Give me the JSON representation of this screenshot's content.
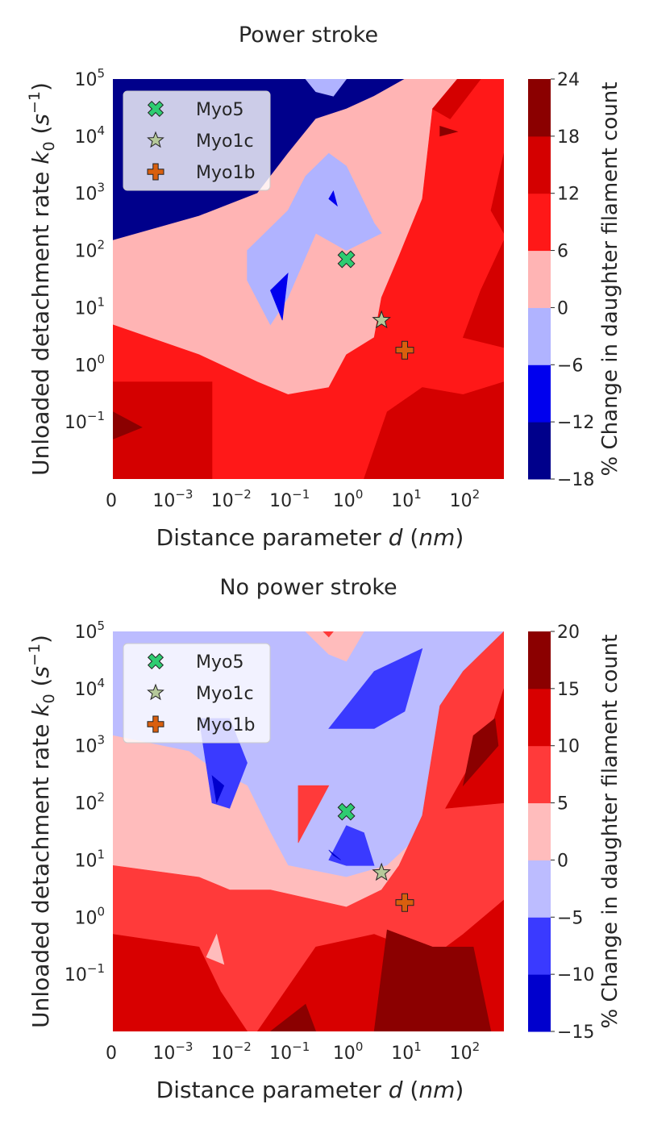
{
  "chart_data": [
    {
      "type": "contour",
      "title": "Power stroke",
      "xlabel_pre": "Distance parameter ",
      "xlabel_var": "d",
      "xlabel_unit": "nm",
      "ylabel_pre": "Unloaded detachment rate ",
      "ylabel_var": "k",
      "ylabel_sub": "0",
      "ylabel_unit": "s",
      "ylabel_exp": "−1",
      "x_scale": "symlog",
      "y_scale": "log",
      "xlim": [
        0,
        500
      ],
      "ylim": [
        0.01,
        100000
      ],
      "xticks": [
        {
          "value": 0,
          "base": "0",
          "exp": ""
        },
        {
          "value": 0.001,
          "base": "10",
          "exp": "−3"
        },
        {
          "value": 0.01,
          "base": "10",
          "exp": "−2"
        },
        {
          "value": 0.1,
          "base": "10",
          "exp": "−1"
        },
        {
          "value": 1,
          "base": "10",
          "exp": "0"
        },
        {
          "value": 10,
          "base": "10",
          "exp": "1"
        },
        {
          "value": 100,
          "base": "10",
          "exp": "2"
        }
      ],
      "yticks": [
        {
          "value": 0.1,
          "base": "10",
          "exp": "−1"
        },
        {
          "value": 1,
          "base": "10",
          "exp": "0"
        },
        {
          "value": 10,
          "base": "10",
          "exp": "1"
        },
        {
          "value": 100,
          "base": "10",
          "exp": "2"
        },
        {
          "value": 1000,
          "base": "10",
          "exp": "3"
        },
        {
          "value": 10000,
          "base": "10",
          "exp": "4"
        },
        {
          "value": 100000,
          "base": "10",
          "exp": "5"
        }
      ],
      "colorbar_label": "% Change in daughter filament count",
      "colorbar_levels": [
        -18,
        -12,
        -6,
        0,
        6,
        12,
        18,
        24
      ],
      "colorbar_colors": [
        "#00008b",
        "#0000ee",
        "#b0b3ff",
        "#ffb4b4",
        "#ff1818",
        "#d40000",
        "#8b0000"
      ],
      "legend_position": "upper-left",
      "points": [
        {
          "name": "Myo5",
          "x": 1.0,
          "y": 70,
          "marker": "x-filled",
          "color": "#2ecc71"
        },
        {
          "name": "Myo1c",
          "x": 4.0,
          "y": 6,
          "marker": "star",
          "color": "#b6c99a"
        },
        {
          "name": "Myo1b",
          "x": 10.0,
          "y": 1.8,
          "marker": "plus-filled",
          "color": "#d95f0e"
        }
      ],
      "regions": [
        {
          "level": 1,
          "pts": [
            [
              0,
              0.01
            ],
            [
              500,
              0.01
            ],
            [
              500,
              100000
            ],
            [
              0,
              100000
            ]
          ]
        },
        {
          "level": 0,
          "pts": [
            [
              0,
              150
            ],
            [
              0.003,
              400
            ],
            [
              0.03,
              1000
            ],
            [
              0.1,
              5000
            ],
            [
              0.3,
              20000
            ],
            [
              1,
              30000
            ],
            [
              3,
              50000
            ],
            [
              10,
              100000
            ],
            [
              0,
              100000
            ]
          ]
        },
        {
          "level": 3,
          "pts": [
            [
              0,
              150
            ],
            [
              0.003,
              400
            ],
            [
              0.03,
              1000
            ],
            [
              0.1,
              5000
            ],
            [
              0.3,
              20000
            ],
            [
              1,
              30000
            ],
            [
              3,
              50000
            ],
            [
              10,
              100000
            ],
            [
              500,
              100000
            ],
            [
              500,
              0.01
            ],
            [
              0,
              0.01
            ]
          ]
        },
        {
          "level": 4,
          "pts": [
            [
              0,
              5
            ],
            [
              0.003,
              1.5
            ],
            [
              0.03,
              0.5
            ],
            [
              0.1,
              0.3
            ],
            [
              0.5,
              0.4
            ],
            [
              1,
              1.5
            ],
            [
              3,
              3
            ],
            [
              4,
              15
            ],
            [
              8,
              80
            ],
            [
              20,
              800
            ],
            [
              30,
              30000
            ],
            [
              80,
              100000
            ],
            [
              500,
              100000
            ],
            [
              500,
              0.01
            ],
            [
              0,
              0.01
            ]
          ]
        },
        {
          "level": 5,
          "pts": [
            [
              0,
              0.5
            ],
            [
              0.005,
              0.5
            ],
            [
              0.005,
              0.01
            ],
            [
              0,
              0.01
            ]
          ]
        },
        {
          "level": 5,
          "pts": [
            [
              2,
              0.01
            ],
            [
              5,
              0.15
            ],
            [
              20,
              0.4
            ],
            [
              100,
              0.3
            ],
            [
              500,
              0.5
            ],
            [
              500,
              0.01
            ]
          ]
        },
        {
          "level": 5,
          "pts": [
            [
              100,
              3
            ],
            [
              200,
              20
            ],
            [
              500,
              150
            ],
            [
              500,
              2
            ]
          ]
        },
        {
          "level": 5,
          "pts": [
            [
              300,
              500
            ],
            [
              500,
              5000
            ],
            [
              500,
              200
            ]
          ]
        },
        {
          "level": 5,
          "pts": [
            [
              30,
              30000
            ],
            [
              80,
              100000
            ],
            [
              200,
              100000
            ],
            [
              60,
              20000
            ]
          ]
        },
        {
          "level": 6,
          "pts": [
            [
              0,
              0.15
            ],
            [
              0.0005,
              0.08
            ],
            [
              0,
              0.05
            ]
          ]
        },
        {
          "level": 6,
          "pts": [
            [
              40,
              15000
            ],
            [
              80,
              12000
            ],
            [
              40,
              10000
            ]
          ]
        },
        {
          "level": 2,
          "pts": [
            [
              0.02,
              100
            ],
            [
              0.1,
              500
            ],
            [
              0.2,
              2000
            ],
            [
              0.5,
              5000
            ],
            [
              1,
              3000
            ],
            [
              3,
              300
            ],
            [
              4,
              200
            ],
            [
              1,
              100
            ],
            [
              0.3,
              200
            ],
            [
              0.1,
              15
            ],
            [
              0.05,
              5
            ],
            [
              0.02,
              30
            ]
          ]
        },
        {
          "level": 2,
          "pts": [
            [
              0.2,
              100000
            ],
            [
              1,
              100000
            ],
            [
              0.6,
              50000
            ],
            [
              0.3,
              60000
            ]
          ]
        },
        {
          "level": 1,
          "pts": [
            [
              0.05,
              20
            ],
            [
              0.08,
              6
            ],
            [
              0.1,
              40
            ]
          ]
        },
        {
          "level": 1,
          "pts": [
            [
              0.5,
              800
            ],
            [
              0.7,
              600
            ],
            [
              0.6,
              1100
            ]
          ]
        }
      ]
    },
    {
      "type": "contour",
      "title": "No power stroke",
      "xlabel_pre": "Distance parameter ",
      "xlabel_var": "d",
      "xlabel_unit": "nm",
      "ylabel_pre": "Unloaded detachment rate ",
      "ylabel_var": "k",
      "ylabel_sub": "0",
      "ylabel_unit": "s",
      "ylabel_exp": "−1",
      "x_scale": "symlog",
      "y_scale": "log",
      "xlim": [
        0,
        500
      ],
      "ylim": [
        0.01,
        100000
      ],
      "xticks": [
        {
          "value": 0,
          "base": "0",
          "exp": ""
        },
        {
          "value": 0.001,
          "base": "10",
          "exp": "−3"
        },
        {
          "value": 0.01,
          "base": "10",
          "exp": "−2"
        },
        {
          "value": 0.1,
          "base": "10",
          "exp": "−1"
        },
        {
          "value": 1,
          "base": "10",
          "exp": "0"
        },
        {
          "value": 10,
          "base": "10",
          "exp": "1"
        },
        {
          "value": 100,
          "base": "10",
          "exp": "2"
        }
      ],
      "yticks": [
        {
          "value": 0.1,
          "base": "10",
          "exp": "−1"
        },
        {
          "value": 1,
          "base": "10",
          "exp": "0"
        },
        {
          "value": 10,
          "base": "10",
          "exp": "1"
        },
        {
          "value": 100,
          "base": "10",
          "exp": "2"
        },
        {
          "value": 1000,
          "base": "10",
          "exp": "3"
        },
        {
          "value": 10000,
          "base": "10",
          "exp": "4"
        },
        {
          "value": 100000,
          "base": "10",
          "exp": "5"
        }
      ],
      "colorbar_label": "% Change in daughter filament count",
      "colorbar_levels": [
        -15,
        -10,
        -5,
        0,
        5,
        10,
        15,
        20
      ],
      "colorbar_colors": [
        "#0000cd",
        "#3a3aff",
        "#bcbcff",
        "#ffbcbc",
        "#ff3a3a",
        "#d80000",
        "#8b0000"
      ],
      "legend_position": "upper-left",
      "points": [
        {
          "name": "Myo5",
          "x": 1.0,
          "y": 70,
          "marker": "x-filled",
          "color": "#2ecc71"
        },
        {
          "name": "Myo1c",
          "x": 4.0,
          "y": 6,
          "marker": "star",
          "color": "#b6c99a"
        },
        {
          "name": "Myo1b",
          "x": 10.0,
          "y": 1.8,
          "marker": "plus-filled",
          "color": "#d95f0e"
        }
      ],
      "regions": [
        {
          "level": 2,
          "pts": [
            [
              0,
              0.01
            ],
            [
              500,
              0.01
            ],
            [
              500,
              100000
            ],
            [
              0,
              100000
            ]
          ]
        },
        {
          "level": 3,
          "pts": [
            [
              0,
              1500
            ],
            [
              0.002,
              800
            ],
            [
              0.005,
              400
            ],
            [
              0.02,
              200
            ],
            [
              0.05,
              30
            ],
            [
              0.1,
              8
            ],
            [
              1,
              5
            ],
            [
              5,
              8
            ],
            [
              20,
              30
            ],
            [
              100,
              100
            ],
            [
              500,
              50
            ],
            [
              500,
              0.01
            ],
            [
              0,
              0.01
            ]
          ]
        },
        {
          "level": 4,
          "pts": [
            [
              0,
              8
            ],
            [
              0.003,
              5
            ],
            [
              0.01,
              3
            ],
            [
              0.05,
              3
            ],
            [
              1,
              1.5
            ],
            [
              4,
              3
            ],
            [
              8,
              8
            ],
            [
              20,
              60
            ],
            [
              40,
              5000
            ],
            [
              100,
              20000
            ],
            [
              500,
              100000
            ],
            [
              500,
              0.01
            ],
            [
              0,
              0.01
            ]
          ]
        },
        {
          "level": 5,
          "pts": [
            [
              0,
              0.5
            ],
            [
              0.003,
              0.3
            ],
            [
              0.007,
              0.05
            ],
            [
              0.02,
              0.01
            ],
            [
              0,
              0.01
            ]
          ]
        },
        {
          "level": 5,
          "pts": [
            [
              0.03,
              0.01
            ],
            [
              0.3,
              0.3
            ],
            [
              3,
              0.5
            ],
            [
              30,
              0.2
            ],
            [
              100,
              0.5
            ],
            [
              500,
              2
            ],
            [
              500,
              0.01
            ]
          ]
        },
        {
          "level": 5,
          "pts": [
            [
              50,
              80
            ],
            [
              300,
              2000
            ],
            [
              500,
              10000
            ],
            [
              500,
              100
            ]
          ]
        },
        {
          "level": 6,
          "pts": [
            [
              0.05,
              0.01
            ],
            [
              0.2,
              0.03
            ],
            [
              0.3,
              0.01
            ]
          ]
        },
        {
          "level": 6,
          "pts": [
            [
              3,
              0.01
            ],
            [
              5,
              0.6
            ],
            [
              30,
              0.3
            ],
            [
              150,
              0.3
            ],
            [
              300,
              0.01
            ]
          ]
        },
        {
          "level": 6,
          "pts": [
            [
              100,
              200
            ],
            [
              400,
              1000
            ],
            [
              350,
              3000
            ],
            [
              150,
              1500
            ]
          ]
        },
        {
          "level": 3,
          "pts": [
            [
              0.004,
              0.2
            ],
            [
              0.006,
              0.5
            ],
            [
              0.008,
              0.15
            ]
          ]
        },
        {
          "level": 4,
          "pts": [
            [
              0.15,
              200
            ],
            [
              0.5,
              200
            ],
            [
              0.15,
              20
            ]
          ]
        },
        {
          "level": 1,
          "pts": [
            [
              0.003,
              3000
            ],
            [
              0.01,
              3000
            ],
            [
              0.02,
              500
            ],
            [
              0.01,
              80
            ],
            [
              0.005,
              100
            ]
          ]
        },
        {
          "level": 1,
          "pts": [
            [
              0.5,
              2000
            ],
            [
              3,
              20000
            ],
            [
              20,
              50000
            ],
            [
              10,
              4000
            ],
            [
              3,
              2000
            ]
          ]
        },
        {
          "level": 0,
          "pts": [
            [
              0.005,
              300
            ],
            [
              0.008,
              200
            ],
            [
              0.006,
              100
            ]
          ]
        },
        {
          "level": 1,
          "pts": [
            [
              0.5,
              10
            ],
            [
              1,
              40
            ],
            [
              2,
              30
            ],
            [
              3,
              8
            ],
            [
              1,
              8
            ]
          ]
        },
        {
          "level": 0,
          "pts": [
            [
              0.5,
              15
            ],
            [
              0.8,
              10
            ],
            [
              0.6,
              12
            ]
          ]
        },
        {
          "level": 3,
          "pts": [
            [
              0.2,
              100000
            ],
            [
              2,
              100000
            ],
            [
              1,
              30000
            ],
            [
              0.5,
              40000
            ]
          ]
        },
        {
          "level": 4,
          "pts": [
            [
              0.4,
              100000
            ],
            [
              0.6,
              100000
            ],
            [
              0.5,
              80000
            ]
          ]
        }
      ]
    }
  ]
}
